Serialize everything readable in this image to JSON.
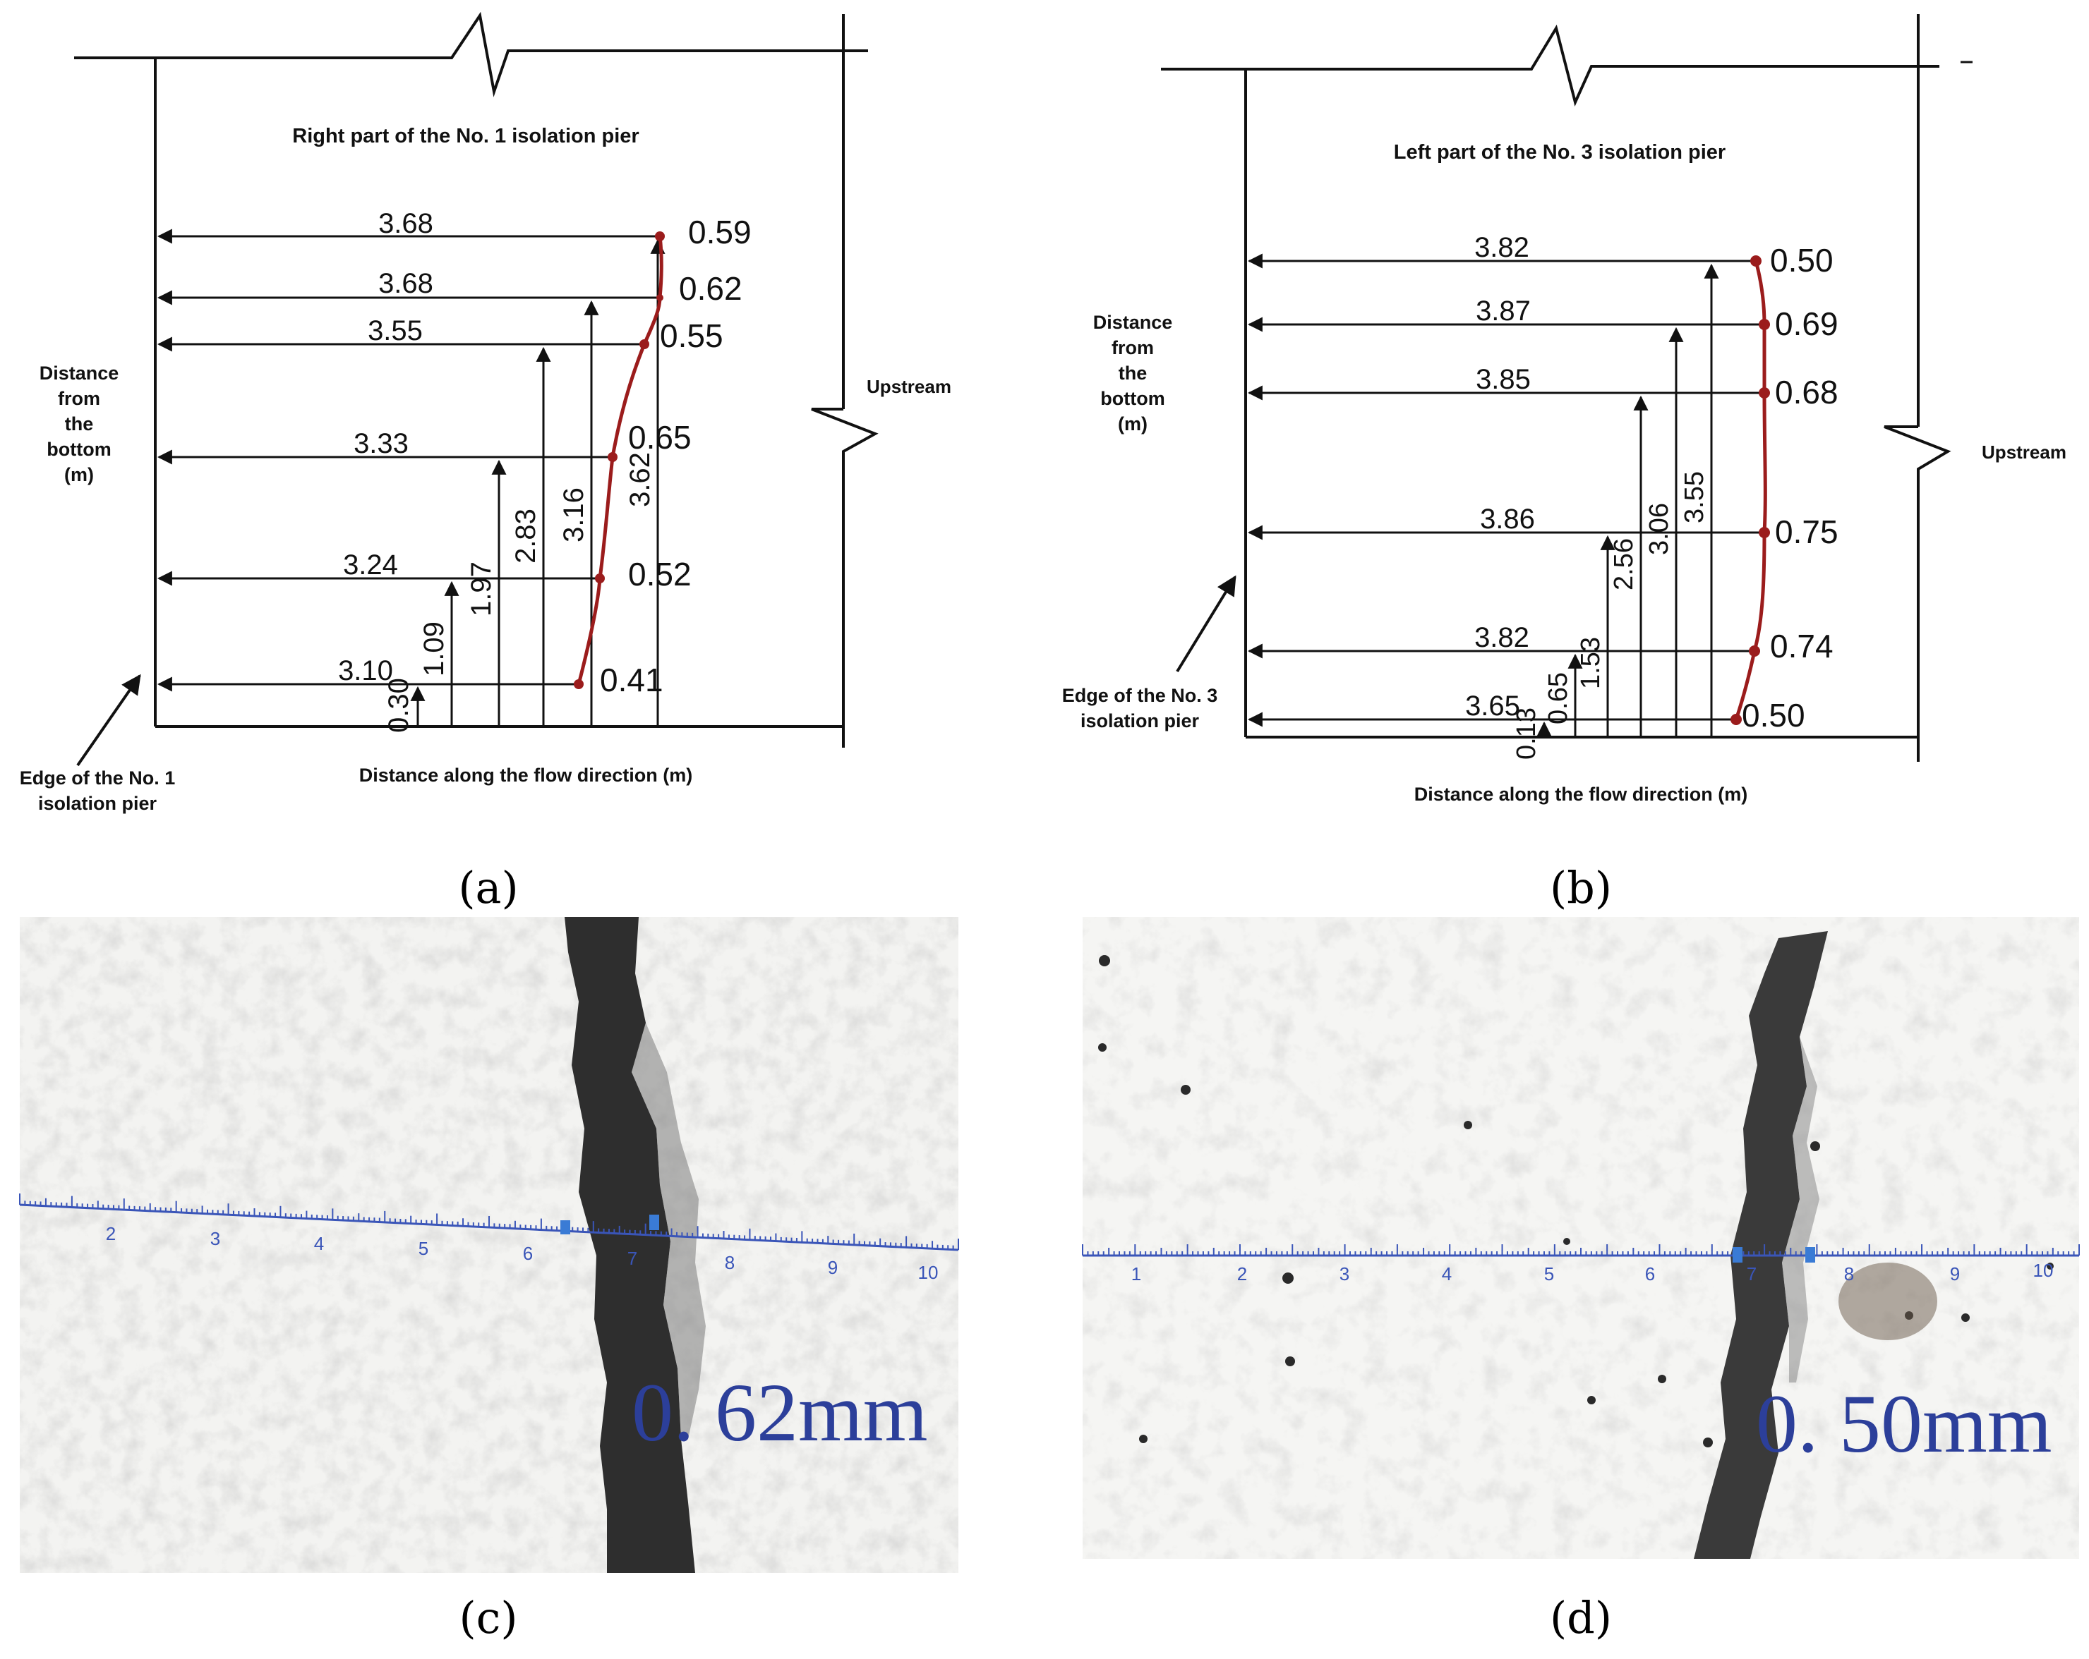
{
  "panel_a": {
    "title": "Right part of the No. 1 isolation pier",
    "y_label": [
      "Distance",
      "from",
      "the",
      "bottom",
      "(m)"
    ],
    "x_label": "Distance along the flow direction (m)",
    "side_label": "Upstream",
    "pointer_label": [
      "Edge of the No. 1",
      "isolation pier"
    ],
    "caption": "(a)",
    "rows": [
      {
        "length": "3.68",
        "width": "0.59"
      },
      {
        "length": "3.68",
        "width": "0.62"
      },
      {
        "length": "3.55",
        "width": "0.55"
      },
      {
        "length": "3.33",
        "width": "0.65"
      },
      {
        "length": "3.24",
        "width": "0.52"
      },
      {
        "length": "3.10",
        "width": "0.41"
      }
    ],
    "heights": [
      "0.30",
      "1.09",
      "1.97",
      "2.83",
      "3.16",
      "3.62"
    ]
  },
  "panel_b": {
    "title": "Left part of the No. 3 isolation pier",
    "y_label": [
      "Distance",
      "from",
      "the",
      "bottom",
      "(m)"
    ],
    "x_label": "Distance along the flow direction (m)",
    "side_label": "Upstream",
    "pointer_label": [
      "Edge of the No. 3",
      "isolation pier"
    ],
    "caption": "(b)",
    "rows": [
      {
        "length": "3.82",
        "width": "0.50"
      },
      {
        "length": "3.87",
        "width": "0.69"
      },
      {
        "length": "3.85",
        "width": "0.68"
      },
      {
        "length": "3.86",
        "width": "0.75"
      },
      {
        "length": "3.82",
        "width": "0.74"
      },
      {
        "length": "3.65",
        "width": "0.50"
      }
    ],
    "heights": [
      "0.13",
      "0.65",
      "1.53",
      "2.56",
      "3.06",
      "3.55"
    ]
  },
  "panel_c": {
    "caption": "(c)",
    "reading": "0. 62mm",
    "ruler_ticks": [
      "2",
      "3",
      "4",
      "5",
      "6",
      "7",
      "8",
      "9",
      "10"
    ]
  },
  "panel_d": {
    "caption": "(d)",
    "reading": "0. 50mm",
    "ruler_ticks": [
      "1",
      "2",
      "3",
      "4",
      "5",
      "6",
      "7",
      "8",
      "9",
      "10"
    ]
  },
  "colors": {
    "crack_curve": "#9b1c1c",
    "ruler": "#3a55b8",
    "reading": "#2c3f9a"
  }
}
